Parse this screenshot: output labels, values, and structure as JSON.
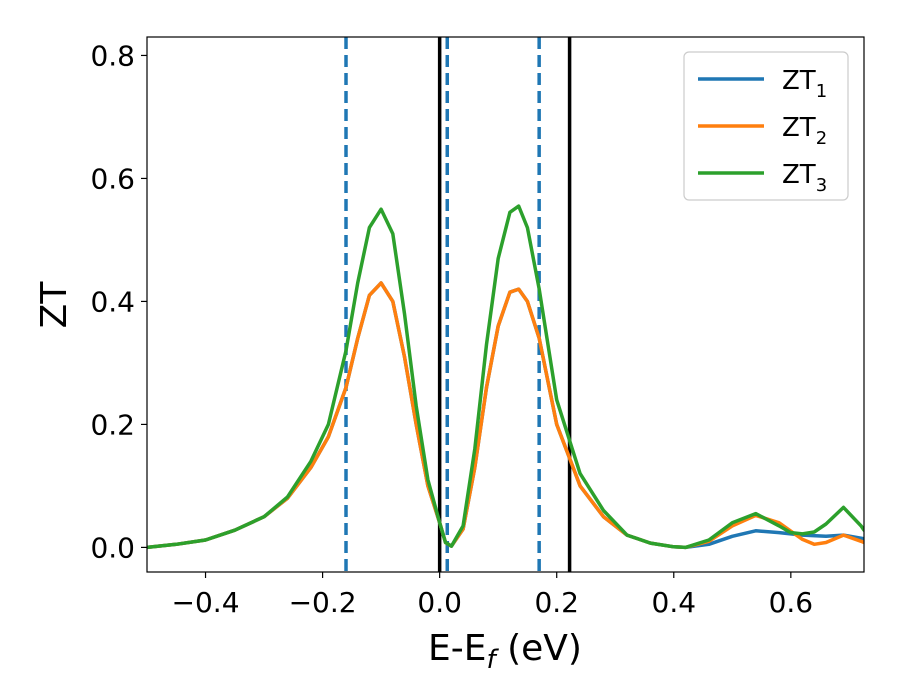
{
  "chart_data": {
    "type": "line",
    "xlabel": "E-E",
    "xlabel_sub": "f",
    "xlabel_unit": " (eV)",
    "ylabel": "ZT",
    "xlim": [
      -0.5,
      0.725
    ],
    "ylim": [
      -0.04,
      0.83
    ],
    "xticks": [
      -0.4,
      -0.2,
      0.0,
      0.2,
      0.4,
      0.6
    ],
    "xtick_labels": [
      "−0.4",
      "−0.2",
      "0.0",
      "0.2",
      "0.4",
      "0.6"
    ],
    "yticks": [
      0.0,
      0.2,
      0.4,
      0.6,
      0.8
    ],
    "ytick_labels": [
      "0.0",
      "0.2",
      "0.4",
      "0.6",
      "0.8"
    ],
    "grid": false,
    "legend_position": "top-right",
    "vlines_dashed": {
      "x": [
        -0.16,
        0.013,
        0.17
      ],
      "color": "#1f77b4"
    },
    "vlines_solid": {
      "x": [
        0.0,
        0.222
      ],
      "color": "#000000"
    },
    "series": [
      {
        "name": "ZT",
        "name_sub": "1",
        "color": "#1f77b4",
        "x": [
          -0.5,
          -0.45,
          -0.4,
          -0.35,
          -0.3,
          -0.26,
          -0.22,
          -0.19,
          -0.16,
          -0.14,
          -0.12,
          -0.1,
          -0.08,
          -0.06,
          -0.04,
          -0.02,
          0.0,
          0.01,
          0.02,
          0.04,
          0.06,
          0.08,
          0.1,
          0.12,
          0.135,
          0.15,
          0.17,
          0.2,
          0.24,
          0.28,
          0.32,
          0.36,
          0.4,
          0.42,
          0.46,
          0.5,
          0.54,
          0.58,
          0.62,
          0.66,
          0.69,
          0.72,
          0.725
        ],
        "y": [
          0.0,
          0.005,
          0.012,
          0.028,
          0.05,
          0.08,
          0.13,
          0.18,
          0.26,
          0.34,
          0.41,
          0.43,
          0.4,
          0.31,
          0.2,
          0.1,
          0.04,
          0.008,
          0.002,
          0.03,
          0.13,
          0.26,
          0.36,
          0.415,
          0.42,
          0.4,
          0.34,
          0.2,
          0.1,
          0.05,
          0.02,
          0.007,
          0.001,
          0.0,
          0.005,
          0.018,
          0.027,
          0.024,
          0.02,
          0.018,
          0.02,
          0.015,
          0.014
        ]
      },
      {
        "name": "ZT",
        "name_sub": "2",
        "color": "#ff7f0e",
        "x": [
          -0.5,
          -0.45,
          -0.4,
          -0.35,
          -0.3,
          -0.26,
          -0.22,
          -0.19,
          -0.16,
          -0.14,
          -0.12,
          -0.1,
          -0.08,
          -0.06,
          -0.04,
          -0.02,
          0.0,
          0.01,
          0.02,
          0.04,
          0.06,
          0.08,
          0.1,
          0.12,
          0.135,
          0.15,
          0.17,
          0.2,
          0.24,
          0.28,
          0.32,
          0.36,
          0.4,
          0.42,
          0.46,
          0.5,
          0.54,
          0.58,
          0.62,
          0.64,
          0.66,
          0.69,
          0.72,
          0.725
        ],
        "y": [
          0.0,
          0.005,
          0.012,
          0.028,
          0.05,
          0.08,
          0.13,
          0.18,
          0.26,
          0.34,
          0.41,
          0.43,
          0.4,
          0.31,
          0.2,
          0.1,
          0.04,
          0.008,
          0.002,
          0.03,
          0.13,
          0.26,
          0.36,
          0.415,
          0.42,
          0.4,
          0.34,
          0.2,
          0.1,
          0.05,
          0.02,
          0.007,
          0.001,
          0.0,
          0.01,
          0.035,
          0.052,
          0.04,
          0.013,
          0.005,
          0.008,
          0.02,
          0.01,
          0.008
        ]
      },
      {
        "name": "ZT",
        "name_sub": "3",
        "color": "#2ca02c",
        "x": [
          -0.5,
          -0.45,
          -0.4,
          -0.35,
          -0.3,
          -0.26,
          -0.22,
          -0.19,
          -0.16,
          -0.14,
          -0.12,
          -0.1,
          -0.08,
          -0.06,
          -0.04,
          -0.02,
          0.0,
          0.01,
          0.02,
          0.04,
          0.06,
          0.08,
          0.1,
          0.12,
          0.135,
          0.15,
          0.17,
          0.2,
          0.24,
          0.28,
          0.32,
          0.36,
          0.4,
          0.42,
          0.46,
          0.5,
          0.54,
          0.58,
          0.6,
          0.62,
          0.64,
          0.66,
          0.69,
          0.72,
          0.725
        ],
        "y": [
          0.0,
          0.005,
          0.012,
          0.028,
          0.05,
          0.082,
          0.14,
          0.2,
          0.32,
          0.43,
          0.52,
          0.55,
          0.51,
          0.38,
          0.23,
          0.11,
          0.04,
          0.008,
          0.002,
          0.035,
          0.16,
          0.33,
          0.47,
          0.545,
          0.555,
          0.52,
          0.42,
          0.24,
          0.12,
          0.06,
          0.02,
          0.007,
          0.001,
          0.0,
          0.012,
          0.04,
          0.055,
          0.035,
          0.024,
          0.022,
          0.025,
          0.038,
          0.065,
          0.035,
          0.028
        ]
      }
    ]
  }
}
